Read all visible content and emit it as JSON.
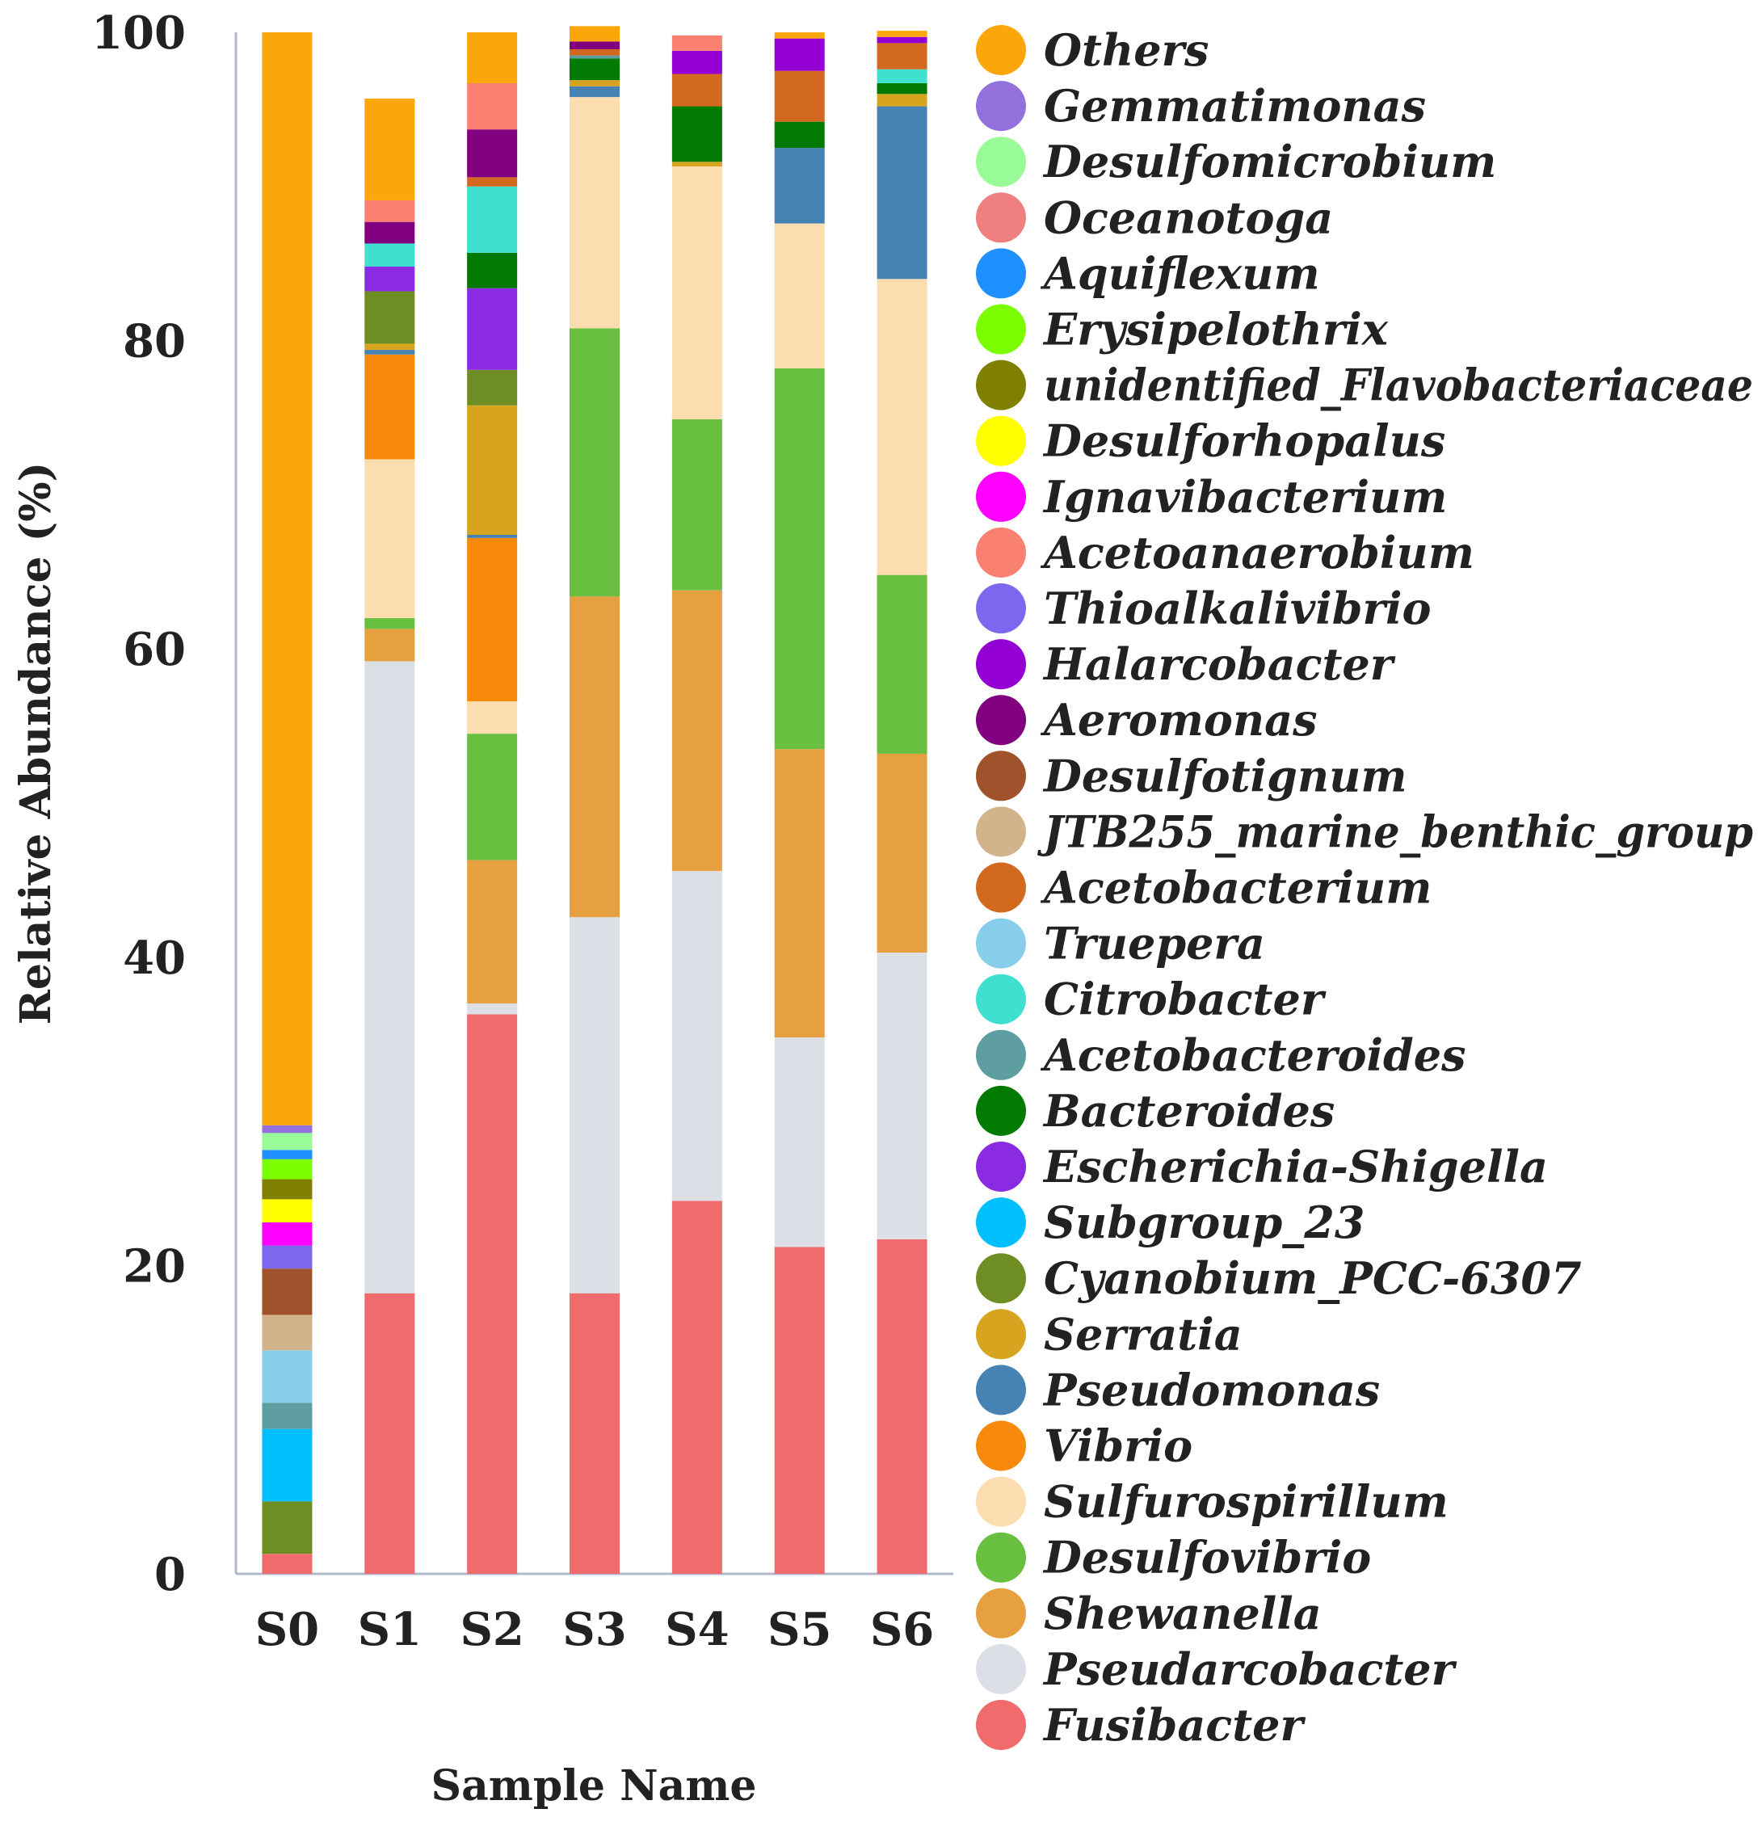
{
  "chart_data": {
    "type": "bar",
    "stacked": true,
    "title": "",
    "xlabel": "Sample Name",
    "ylabel": "Relative Abundance (%)",
    "ylim": [
      0,
      100
    ],
    "yticks": [
      "0",
      "20",
      "40",
      "60",
      "80",
      "100"
    ],
    "categories": [
      "S0",
      "S1",
      "S2",
      "S3",
      "S4",
      "S5",
      "S6"
    ],
    "legend_position": "right",
    "series": [
      {
        "name": "Fusibacter",
        "color": "#F06B6B",
        "values": [
          1.3,
          18.2,
          36.3,
          18.2,
          24.2,
          21.2,
          21.7
        ]
      },
      {
        "name": "Pseudarcobacter",
        "color": "#DCDFE6",
        "values": [
          0,
          41.0,
          0.7,
          24.4,
          21.4,
          13.6,
          18.6
        ]
      },
      {
        "name": "Shewanella",
        "color": "#E6A040",
        "values": [
          0,
          2.1,
          9.3,
          20.8,
          18.2,
          18.7,
          12.9
        ]
      },
      {
        "name": "Desulfovibrio",
        "color": "#69C040",
        "values": [
          0,
          0.7,
          8.2,
          17.4,
          11.1,
          24.7,
          11.6
        ]
      },
      {
        "name": "Sulfurospirillum",
        "color": "#FCDDB0",
        "values": [
          0,
          10.3,
          2.1,
          15.0,
          16.4,
          9.4,
          19.2
        ]
      },
      {
        "name": "Vibrio",
        "color": "#F7890B",
        "values": [
          0,
          6.8,
          10.6,
          0,
          0,
          0,
          0
        ]
      },
      {
        "name": "Pseudomonas",
        "color": "#4682B4",
        "values": [
          0,
          0.3,
          0.2,
          0.7,
          0,
          4.9,
          11.2
        ]
      },
      {
        "name": "Serratia",
        "color": "#D6A41E",
        "values": [
          0,
          0.4,
          8.4,
          0.4,
          0.3,
          0,
          0.8
        ]
      },
      {
        "name": "Cyanobium_PCC-6307",
        "color": "#6E8E23",
        "values": [
          3.4,
          3.4,
          2.3,
          0,
          0,
          0,
          0
        ]
      },
      {
        "name": "Subgroup_23",
        "color": "#00BFFF",
        "values": [
          4.7,
          0,
          0,
          0,
          0,
          0,
          0
        ]
      },
      {
        "name": "Escherichia-Shigella",
        "color": "#8A2BE2",
        "values": [
          0,
          1.6,
          5.3,
          0,
          0,
          0,
          0
        ]
      },
      {
        "name": "Bacteroides",
        "color": "#007A00",
        "values": [
          0,
          0,
          2.3,
          1.4,
          3.6,
          1.7,
          0.7
        ]
      },
      {
        "name": "Acetobacteroides",
        "color": "#5F9EA0",
        "values": [
          1.7,
          0,
          0,
          0.2,
          0,
          0,
          0
        ]
      },
      {
        "name": "Citrobacter",
        "color": "#40E0D0",
        "values": [
          0,
          1.5,
          4.3,
          0,
          0,
          0,
          0.9
        ]
      },
      {
        "name": "Truepera",
        "color": "#87CEEB",
        "values": [
          3.4,
          0,
          0,
          0,
          0,
          0,
          0
        ]
      },
      {
        "name": "Acetobacterium",
        "color": "#D2691E",
        "values": [
          0,
          0,
          0.6,
          0.4,
          2.1,
          3.3,
          1.7
        ]
      },
      {
        "name": "JTB255_marine_benthic_group",
        "color": "#D2B48C",
        "values": [
          2.3,
          0,
          0,
          0,
          0,
          0,
          0
        ]
      },
      {
        "name": "Desulfotignum",
        "color": "#A0522D",
        "values": [
          3.0,
          0,
          0,
          0,
          0,
          0,
          0
        ]
      },
      {
        "name": "Aeromonas",
        "color": "#800080",
        "values": [
          0,
          1.4,
          3.1,
          0.5,
          0,
          0,
          0
        ]
      },
      {
        "name": "Halarcobacter",
        "color": "#9400D3",
        "values": [
          0,
          0,
          0,
          0,
          1.5,
          2.1,
          0.4
        ]
      },
      {
        "name": "Thioalkalivibrio",
        "color": "#7B68EE",
        "values": [
          1.5,
          0,
          0,
          0,
          0,
          0,
          0
        ]
      },
      {
        "name": "Acetoanaerobium",
        "color": "#FA8072",
        "values": [
          0,
          1.4,
          3.0,
          0,
          1.0,
          0,
          0
        ]
      },
      {
        "name": "Ignavibacterium",
        "color": "#FF00FF",
        "values": [
          1.5,
          0,
          0,
          0,
          0,
          0,
          0
        ]
      },
      {
        "name": "Desulforhopalus",
        "color": "#FFFF00",
        "values": [
          1.5,
          0,
          0,
          0,
          0,
          0,
          0
        ]
      },
      {
        "name": "unidentified_Flavobacteriaceae",
        "color": "#808000",
        "values": [
          1.3,
          0,
          0,
          0,
          0,
          0,
          0
        ]
      },
      {
        "name": "Erysipelothrix",
        "color": "#7CFC00",
        "values": [
          1.3,
          0,
          0,
          0,
          0,
          0,
          0
        ]
      },
      {
        "name": "Aquiflexum",
        "color": "#1E90FF",
        "values": [
          0.6,
          0,
          0,
          0,
          0,
          0,
          0
        ]
      },
      {
        "name": "Oceanotoga",
        "color": "#F08080",
        "values": [
          0,
          0,
          0,
          0,
          0,
          0,
          0
        ]
      },
      {
        "name": "Desulfomicrobium",
        "color": "#98FB98",
        "values": [
          1.1,
          0,
          0,
          0,
          0,
          0,
          0
        ]
      },
      {
        "name": "Gemmatimonas",
        "color": "#9370DB",
        "values": [
          0.5,
          0,
          0,
          0,
          0,
          0,
          0
        ]
      },
      {
        "name": "Others",
        "color": "#FBA70A",
        "values": [
          70.9,
          6.6,
          3.3,
          1.0,
          0,
          0.4,
          0.4
        ]
      }
    ]
  }
}
